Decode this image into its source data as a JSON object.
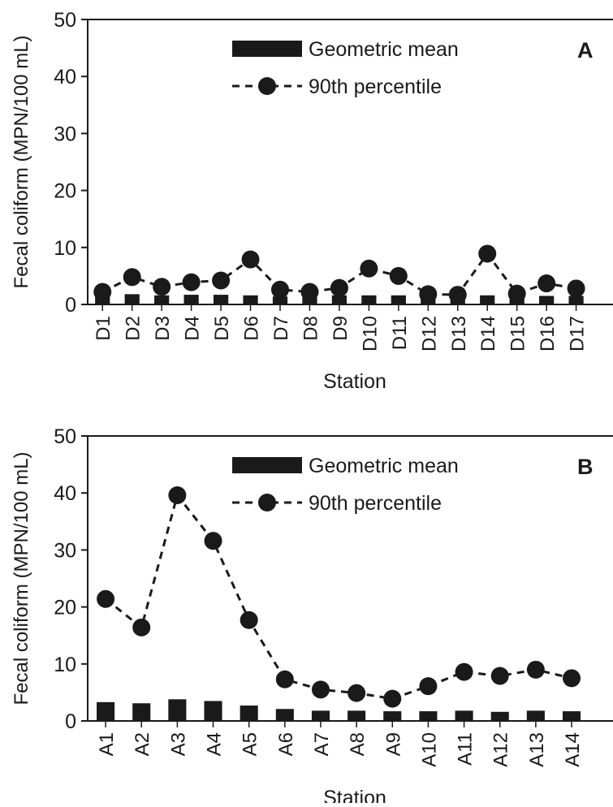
{
  "chart_data": [
    {
      "type": "bar+line",
      "panel_label": "A",
      "xlabel": "Station",
      "ylabel": "Fecal coliform (MPN/100 mL)",
      "ylim": [
        0,
        50
      ],
      "yticks": [
        0,
        10,
        20,
        30,
        40,
        50
      ],
      "categories": [
        "D1",
        "D2",
        "D3",
        "D4",
        "D5",
        "D6",
        "D7",
        "D8",
        "D9",
        "D10",
        "D11",
        "D12",
        "D13",
        "D14",
        "D15",
        "D16",
        "D17"
      ],
      "series": [
        {
          "name": "Geometric mean",
          "kind": "bar",
          "color": "#1a1a1a",
          "values": [
            1.5,
            1.8,
            1.6,
            1.7,
            1.7,
            1.6,
            1.4,
            1.3,
            1.6,
            1.6,
            1.6,
            1.3,
            1.2,
            1.6,
            1.3,
            1.5,
            1.5
          ]
        },
        {
          "name": "90th percentile",
          "kind": "line",
          "style": "dashed",
          "color": "#1a1a1a",
          "values": [
            2.2,
            4.8,
            3.1,
            3.9,
            4.2,
            7.9,
            2.6,
            2.2,
            2.9,
            6.3,
            5.0,
            1.8,
            1.7,
            8.9,
            1.9,
            3.7,
            2.8
          ]
        }
      ],
      "legend_position": "top-right",
      "grid": false
    },
    {
      "type": "bar+line",
      "panel_label": "B",
      "xlabel": "Station",
      "ylabel": "Fecal coliform (MPN/100 mL)",
      "ylim": [
        0,
        50
      ],
      "yticks": [
        0,
        10,
        20,
        30,
        40,
        50
      ],
      "categories": [
        "A1",
        "A2",
        "A3",
        "A4",
        "A5",
        "A6",
        "A7",
        "A8",
        "A9",
        "A10",
        "A11",
        "A12",
        "A13",
        "A14"
      ],
      "series": [
        {
          "name": "Geometric mean",
          "kind": "bar",
          "color": "#1a1a1a",
          "values": [
            3.3,
            3.1,
            3.8,
            3.5,
            2.7,
            2.1,
            1.8,
            1.8,
            1.7,
            1.7,
            1.8,
            1.6,
            1.8,
            1.7
          ]
        },
        {
          "name": "90th percentile",
          "kind": "line",
          "style": "dashed",
          "color": "#1a1a1a",
          "values": [
            21.4,
            16.4,
            39.6,
            31.6,
            17.7,
            7.3,
            5.5,
            4.9,
            3.9,
            6.1,
            8.6,
            7.9,
            9.0,
            7.5
          ]
        }
      ],
      "legend_position": "top-right",
      "grid": false
    }
  ]
}
